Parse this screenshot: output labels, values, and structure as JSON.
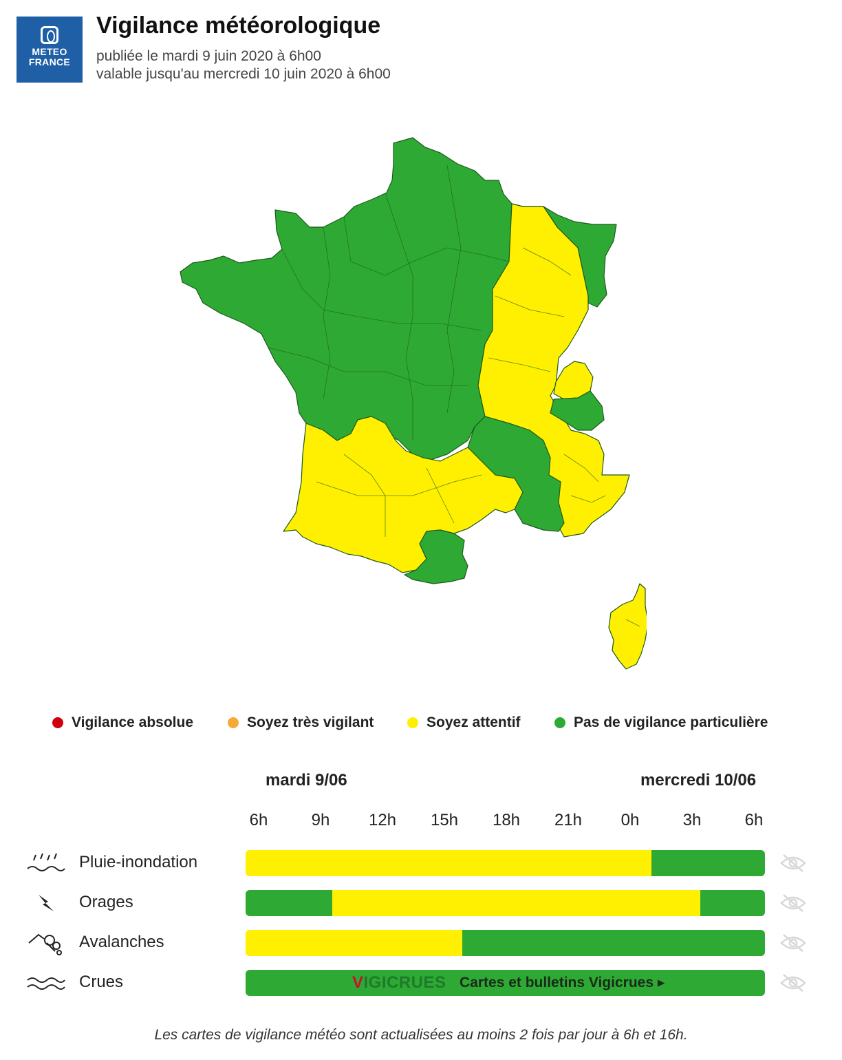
{
  "header": {
    "logo_line1": "METEO",
    "logo_line2": "FRANCE",
    "title": "Vigilance météorologique",
    "published": "publiée le mardi 9 juin 2020 à 6h00",
    "valid_until": "valable jusqu'au mercredi 10 juin 2020 à 6h00"
  },
  "colors": {
    "green": "#2eaa34",
    "yellow": "#ffef00",
    "orange": "#f7a933",
    "red": "#d1000f",
    "border": "#1c5a1c"
  },
  "map": {
    "regions": [
      {
        "id": "north-west",
        "level": "green"
      },
      {
        "id": "north-east-strip",
        "level": "green"
      },
      {
        "id": "east-centre",
        "level": "yellow"
      },
      {
        "id": "alps-north",
        "level": "yellow"
      },
      {
        "id": "alps-green",
        "level": "green"
      },
      {
        "id": "south-west",
        "level": "yellow"
      },
      {
        "id": "pyrenees-east",
        "level": "green"
      },
      {
        "id": "rhone-green",
        "level": "green"
      },
      {
        "id": "south-east",
        "level": "yellow"
      },
      {
        "id": "corsica",
        "level": "yellow"
      }
    ]
  },
  "legend": [
    {
      "label": "Vigilance absolue",
      "color": "#d1000f"
    },
    {
      "label": "Soyez très vigilant",
      "color": "#f7a933"
    },
    {
      "label": "Soyez attentif",
      "color": "#ffef00"
    },
    {
      "label": "Pas de vigilance particulière",
      "color": "#2eaa34"
    }
  ],
  "timeline": {
    "day1": "mardi 9/06",
    "day2": "mercredi 10/06",
    "hours": [
      "6h",
      "9h",
      "12h",
      "15h",
      "18h",
      "21h",
      "0h",
      "3h",
      "6h"
    ],
    "rows": [
      {
        "label": "Pluie-inondation",
        "icon": "rain-flood-icon",
        "segments": [
          {
            "level": "yellow",
            "from_h": 0,
            "to_h": 18.75
          },
          {
            "level": "green",
            "from_h": 18.75,
            "to_h": 24
          }
        ]
      },
      {
        "label": "Orages",
        "icon": "lightning-icon",
        "segments": [
          {
            "level": "green",
            "from_h": 0,
            "to_h": 4
          },
          {
            "level": "yellow",
            "from_h": 4,
            "to_h": 21
          },
          {
            "level": "green",
            "from_h": 21,
            "to_h": 24
          }
        ]
      },
      {
        "label": "Avalanches",
        "icon": "avalanche-icon",
        "segments": [
          {
            "level": "yellow",
            "from_h": 0,
            "to_h": 10
          },
          {
            "level": "green",
            "from_h": 10,
            "to_h": 24
          }
        ]
      },
      {
        "label": "Crues",
        "icon": "waves-icon",
        "segments": [
          {
            "level": "green",
            "from_h": 0,
            "to_h": 24
          }
        ]
      }
    ],
    "vigicrues_logo": "VIGICRUES",
    "vigicrues_link": "Cartes et bulletins Vigicrues ▸"
  },
  "footer": "Les cartes de vigilance météo sont actualisées au moins 2 fois par jour à 6h et 16h."
}
